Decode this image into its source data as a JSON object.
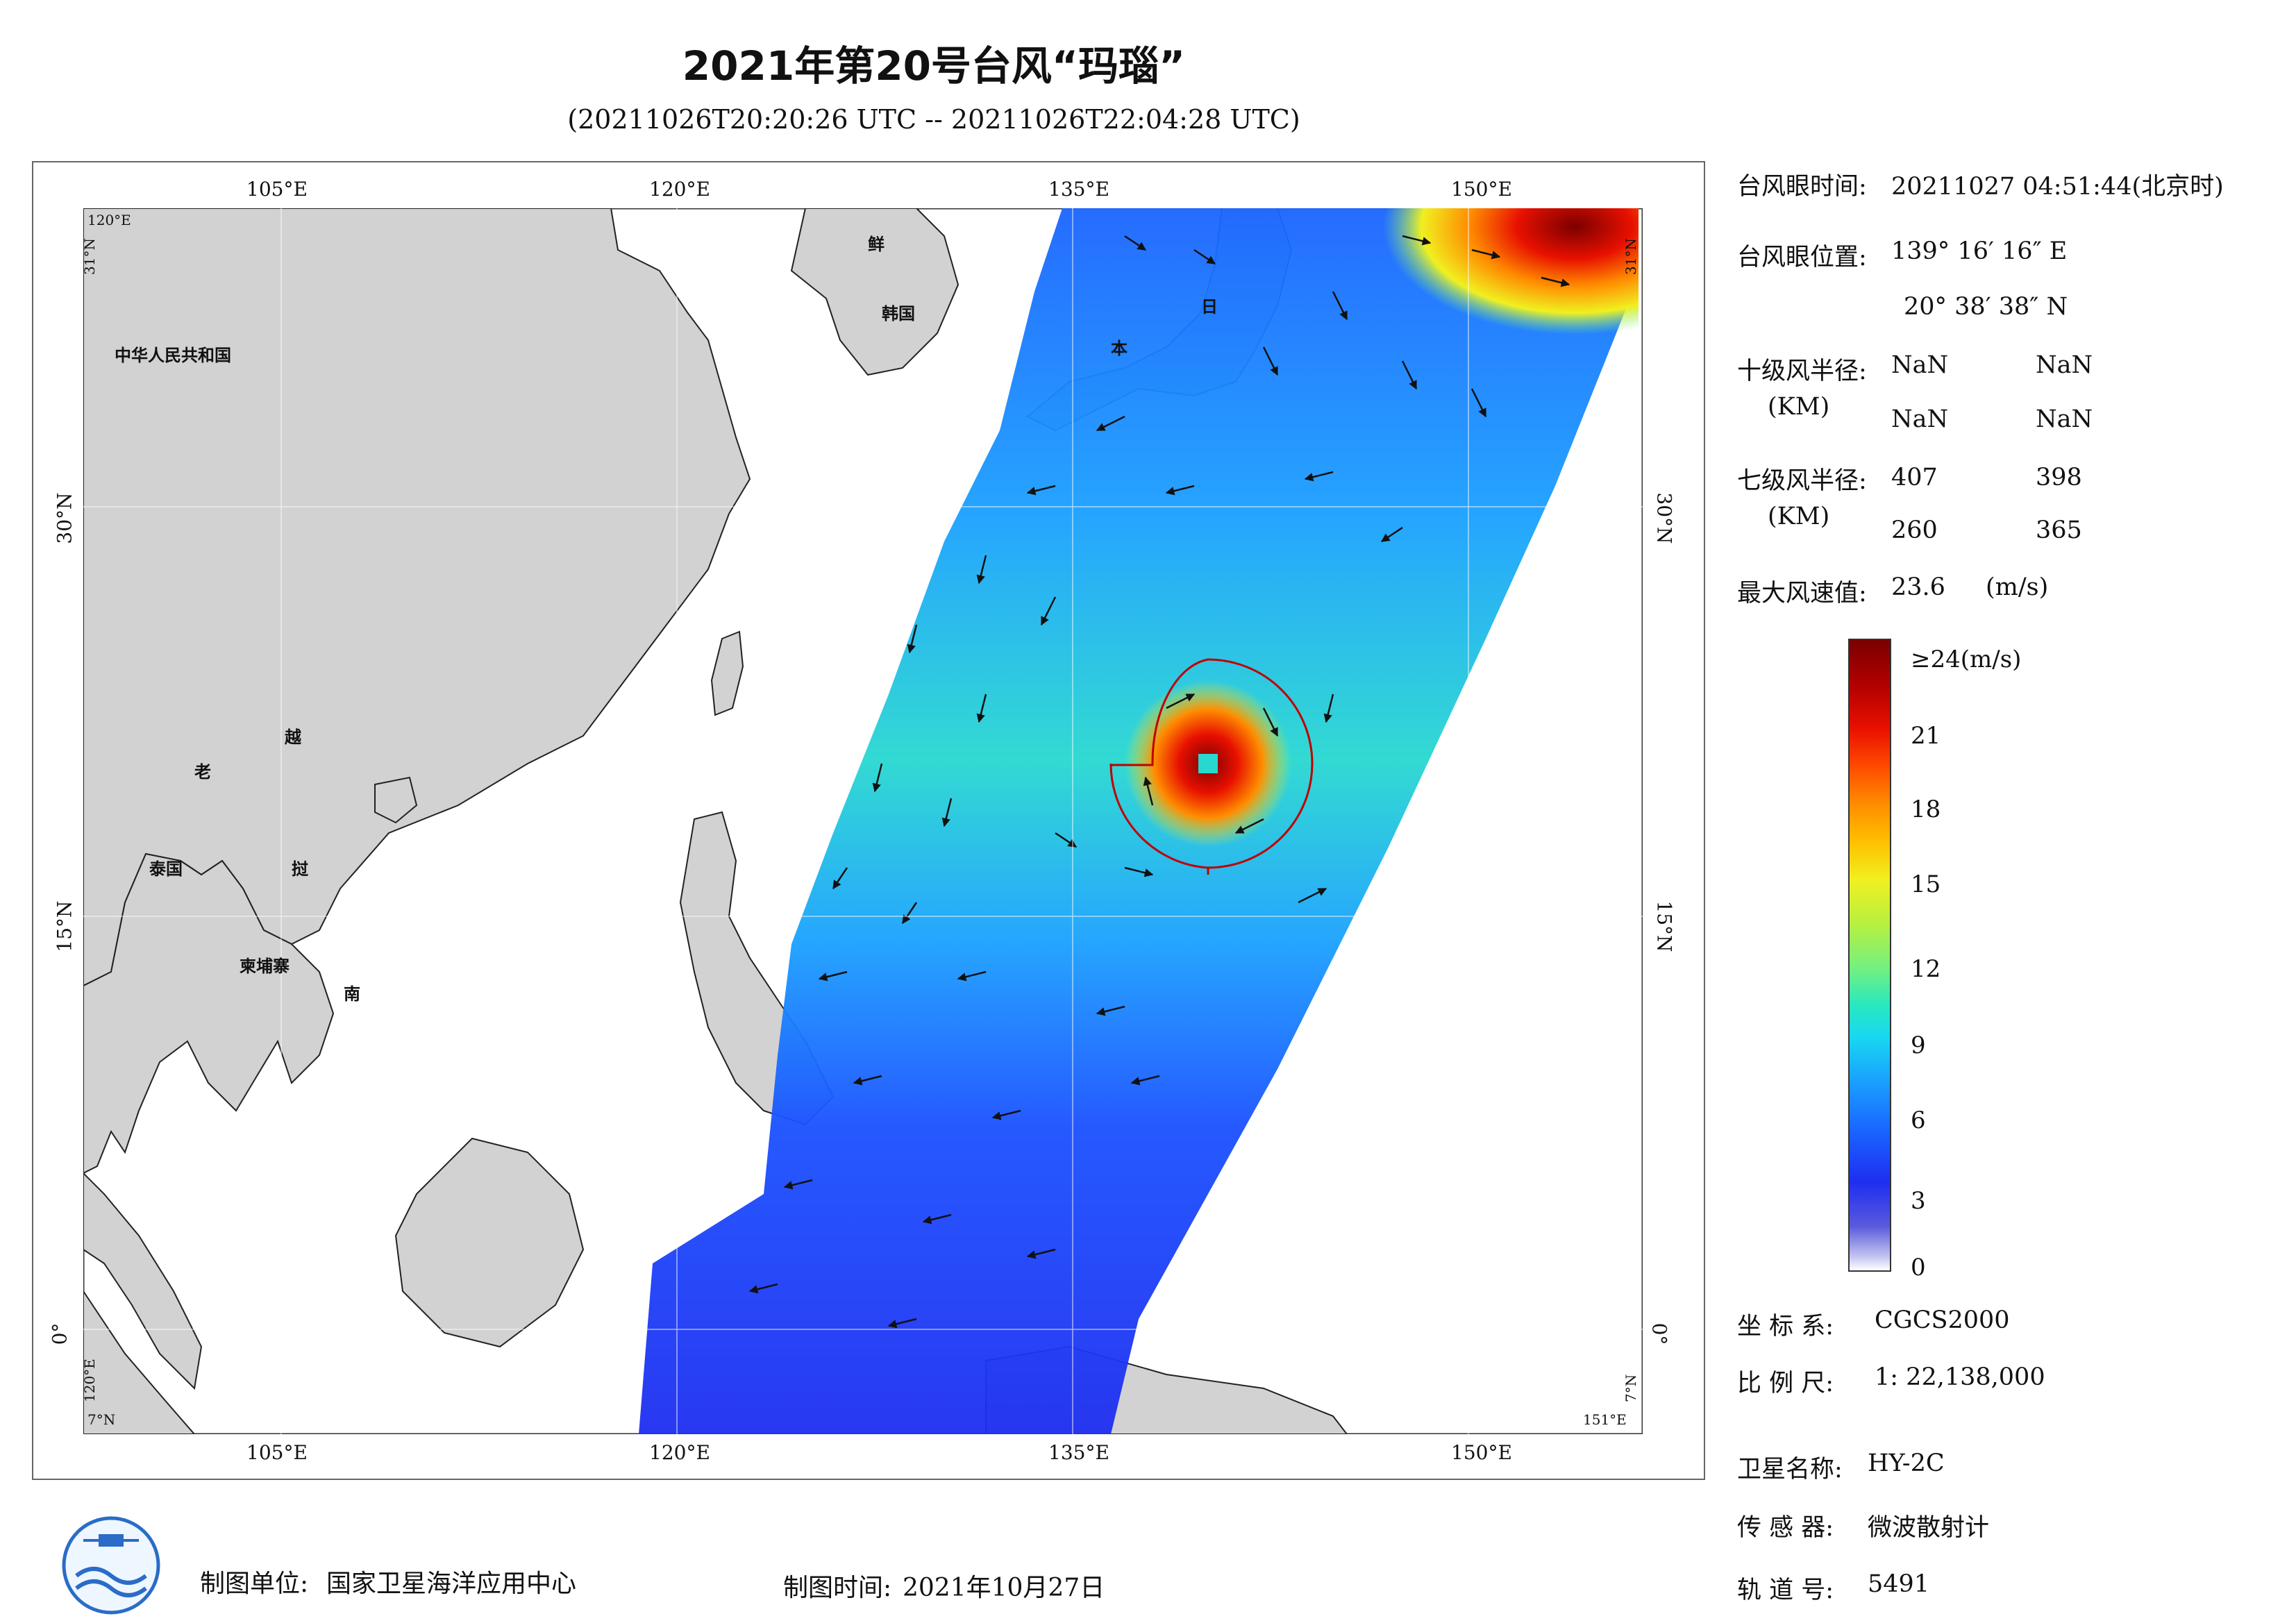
{
  "header": {
    "title": "2021年第20号台风“玛瑙”",
    "subtitle": "(20211026T20:20:26 UTC -- 20211026T22:04:28 UTC)"
  },
  "map": {
    "lon_labels_top": [
      "105°E",
      "120°E",
      "135°E",
      "150°E"
    ],
    "lon_labels_bottom": [
      "105°E",
      "120°E",
      "135°E",
      "150°E"
    ],
    "lat_labels_left": [
      "30°N",
      "15°N",
      "0°"
    ],
    "lat_labels_right": [
      "30°N",
      "15°N",
      "0°"
    ],
    "corner_top_left_lon": "120°E",
    "corner_top_left_lat": "31°N",
    "corner_top_right": "31°N",
    "corner_bottom_left_lon": "120°E",
    "corner_bottom_left_lat": "7°N",
    "corner_bottom_right_lon": "151°E",
    "corner_bottom_right_lat": "7°N",
    "place_labels": [
      "中华人民共和国",
      "鲜",
      "韩国",
      "日",
      "本",
      "老",
      "越",
      "泰国",
      "挝",
      "柬埔寨",
      "南"
    ],
    "land_color": "#d2d2d2",
    "swath_colors": [
      "#1a3cff",
      "#1aa0ff",
      "#28e8c0",
      "#b8f040",
      "#f0f020",
      "#ff8c00",
      "#e81000",
      "#7a0000"
    ]
  },
  "info": {
    "eye_time_label": "台风眼时间:",
    "eye_time_value": "20211027 04:51:44(北京时)",
    "eye_pos_label": "台风眼位置:",
    "eye_pos_lon": "139° 16′ 16″ E",
    "eye_pos_lat": "20° 38′ 38″ N",
    "r10_label": "十级风半径:",
    "r10_unit": "(KM)",
    "r10_values": [
      "NaN",
      "NaN",
      "NaN",
      "NaN"
    ],
    "r7_label": "七级风半径:",
    "r7_unit": "(KM)",
    "r7_values": [
      "407",
      "398",
      "260",
      "365"
    ],
    "max_wind_label": "最大风速值:",
    "max_wind_value": "23.6",
    "max_wind_unit": "(m/s)"
  },
  "colorbar": {
    "top_label": "≥24(m/s)",
    "ticks": [
      "21",
      "18",
      "15",
      "12",
      "9",
      "6",
      "3",
      "0"
    ],
    "tick_values": [
      21,
      18,
      15,
      12,
      9,
      6,
      3,
      0
    ],
    "max": 24
  },
  "meta": {
    "crs_label": "坐 标 系:",
    "crs_value": "CGCS2000",
    "scale_label": "比 例 尺:",
    "scale_value": "1: 22,138,000",
    "satellite_label": "卫星名称:",
    "satellite_value": "HY-2C",
    "sensor_label": "传 感 器:",
    "sensor_value": "微波散射计",
    "orbit_label": "轨 道 号:",
    "orbit_value": "5491",
    "org_label": "制图单位:",
    "org_value": "国家卫星海洋应用中心",
    "date_label": "制图时间:",
    "date_value": "2021年10月27日"
  }
}
